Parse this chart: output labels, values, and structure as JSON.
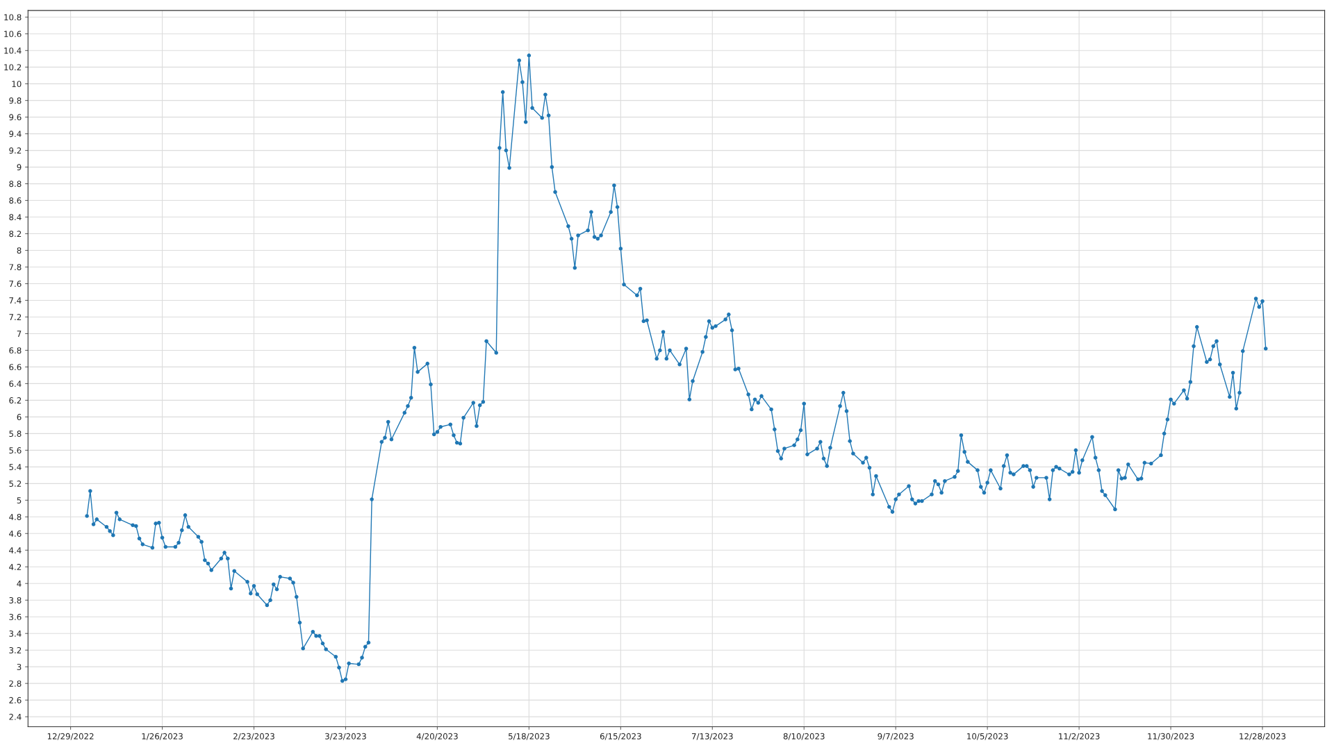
{
  "chart_data": {
    "type": "line",
    "marker": "circle",
    "line_style": "solid",
    "grid": true,
    "xlim": [
      "2022-12-16",
      "2024-01-16"
    ],
    "ylim": [
      2.28,
      10.88
    ],
    "xticks": [
      {
        "value": "2022-12-29",
        "label": "12/29/2022"
      },
      {
        "value": "2023-01-26",
        "label": "1/26/2023"
      },
      {
        "value": "2023-02-23",
        "label": "2/23/2023"
      },
      {
        "value": "2023-03-23",
        "label": "3/23/2023"
      },
      {
        "value": "2023-04-20",
        "label": "4/20/2023"
      },
      {
        "value": "2023-05-18",
        "label": "5/18/2023"
      },
      {
        "value": "2023-06-15",
        "label": "6/15/2023"
      },
      {
        "value": "2023-07-13",
        "label": "7/13/2023"
      },
      {
        "value": "2023-08-10",
        "label": "8/10/2023"
      },
      {
        "value": "2023-09-07",
        "label": "9/7/2023"
      },
      {
        "value": "2023-10-05",
        "label": "10/5/2023"
      },
      {
        "value": "2023-11-02",
        "label": "11/2/2023"
      },
      {
        "value": "2023-11-30",
        "label": "11/30/2023"
      },
      {
        "value": "2023-12-28",
        "label": "12/28/2023"
      }
    ],
    "yticks": [
      2.4,
      2.6,
      2.8,
      3,
      3.2,
      3.4,
      3.6,
      3.8,
      4,
      4.2,
      4.4,
      4.6,
      4.8,
      5,
      5.2,
      5.4,
      5.6,
      5.8,
      6,
      6.2,
      6.4,
      6.6,
      6.8,
      7,
      7.2,
      7.4,
      7.6,
      7.8,
      8,
      8.2,
      8.4,
      8.6,
      8.8,
      9,
      9.2,
      9.4,
      9.6,
      9.8,
      10,
      10.2,
      10.4,
      10.6,
      10.8
    ],
    "x": [
      "2023-01-03",
      "2023-01-04",
      "2023-01-05",
      "2023-01-06",
      "2023-01-09",
      "2023-01-10",
      "2023-01-11",
      "2023-01-12",
      "2023-01-13",
      "2023-01-17",
      "2023-01-18",
      "2023-01-19",
      "2023-01-20",
      "2023-01-23",
      "2023-01-24",
      "2023-01-25",
      "2023-01-26",
      "2023-01-27",
      "2023-01-30",
      "2023-01-31",
      "2023-02-01",
      "2023-02-02",
      "2023-02-03",
      "2023-02-06",
      "2023-02-07",
      "2023-02-08",
      "2023-02-09",
      "2023-02-10",
      "2023-02-13",
      "2023-02-14",
      "2023-02-15",
      "2023-02-16",
      "2023-02-17",
      "2023-02-21",
      "2023-02-22",
      "2023-02-23",
      "2023-02-24",
      "2023-02-27",
      "2023-02-28",
      "2023-03-01",
      "2023-03-02",
      "2023-03-03",
      "2023-03-06",
      "2023-03-07",
      "2023-03-08",
      "2023-03-09",
      "2023-03-10",
      "2023-03-13",
      "2023-03-14",
      "2023-03-15",
      "2023-03-16",
      "2023-03-17",
      "2023-03-20",
      "2023-03-21",
      "2023-03-22",
      "2023-03-23",
      "2023-03-24",
      "2023-03-27",
      "2023-03-28",
      "2023-03-29",
      "2023-03-30",
      "2023-03-31",
      "2023-04-03",
      "2023-04-04",
      "2023-04-05",
      "2023-04-06",
      "2023-04-10",
      "2023-04-11",
      "2023-04-12",
      "2023-04-13",
      "2023-04-14",
      "2023-04-17",
      "2023-04-18",
      "2023-04-19",
      "2023-04-20",
      "2023-04-21",
      "2023-04-24",
      "2023-04-25",
      "2023-04-26",
      "2023-04-27",
      "2023-04-28",
      "2023-05-01",
      "2023-05-02",
      "2023-05-03",
      "2023-05-04",
      "2023-05-05",
      "2023-05-08",
      "2023-05-09",
      "2023-05-10",
      "2023-05-11",
      "2023-05-12",
      "2023-05-15",
      "2023-05-16",
      "2023-05-17",
      "2023-05-18",
      "2023-05-19",
      "2023-05-22",
      "2023-05-23",
      "2023-05-24",
      "2023-05-25",
      "2023-05-26",
      "2023-05-30",
      "2023-05-31",
      "2023-06-01",
      "2023-06-02",
      "2023-06-05",
      "2023-06-06",
      "2023-06-07",
      "2023-06-08",
      "2023-06-09",
      "2023-06-12",
      "2023-06-13",
      "2023-06-14",
      "2023-06-15",
      "2023-06-16",
      "2023-06-20",
      "2023-06-21",
      "2023-06-22",
      "2023-06-23",
      "2023-06-26",
      "2023-06-27",
      "2023-06-28",
      "2023-06-29",
      "2023-06-30",
      "2023-07-03",
      "2023-07-05",
      "2023-07-06",
      "2023-07-07",
      "2023-07-10",
      "2023-07-11",
      "2023-07-12",
      "2023-07-13",
      "2023-07-14",
      "2023-07-17",
      "2023-07-18",
      "2023-07-19",
      "2023-07-20",
      "2023-07-21",
      "2023-07-24",
      "2023-07-25",
      "2023-07-26",
      "2023-07-27",
      "2023-07-28",
      "2023-07-31",
      "2023-08-01",
      "2023-08-02",
      "2023-08-03",
      "2023-08-04",
      "2023-08-07",
      "2023-08-08",
      "2023-08-09",
      "2023-08-10",
      "2023-08-11",
      "2023-08-14",
      "2023-08-15",
      "2023-08-16",
      "2023-08-17",
      "2023-08-18",
      "2023-08-21",
      "2023-08-22",
      "2023-08-23",
      "2023-08-24",
      "2023-08-25",
      "2023-08-28",
      "2023-08-29",
      "2023-08-30",
      "2023-08-31",
      "2023-09-01",
      "2023-09-05",
      "2023-09-06",
      "2023-09-07",
      "2023-09-08",
      "2023-09-11",
      "2023-09-12",
      "2023-09-13",
      "2023-09-14",
      "2023-09-15",
      "2023-09-18",
      "2023-09-19",
      "2023-09-20",
      "2023-09-21",
      "2023-09-22",
      "2023-09-25",
      "2023-09-26",
      "2023-09-27",
      "2023-09-28",
      "2023-09-29",
      "2023-10-02",
      "2023-10-03",
      "2023-10-04",
      "2023-10-05",
      "2023-10-06",
      "2023-10-09",
      "2023-10-10",
      "2023-10-11",
      "2023-10-12",
      "2023-10-13",
      "2023-10-16",
      "2023-10-17",
      "2023-10-18",
      "2023-10-19",
      "2023-10-20",
      "2023-10-23",
      "2023-10-24",
      "2023-10-25",
      "2023-10-26",
      "2023-10-27",
      "2023-10-30",
      "2023-10-31",
      "2023-11-01",
      "2023-11-02",
      "2023-11-03",
      "2023-11-06",
      "2023-11-07",
      "2023-11-08",
      "2023-11-09",
      "2023-11-10",
      "2023-11-13",
      "2023-11-14",
      "2023-11-15",
      "2023-11-16",
      "2023-11-17",
      "2023-11-20",
      "2023-11-21",
      "2023-11-22",
      "2023-11-24",
      "2023-11-27",
      "2023-11-28",
      "2023-11-29",
      "2023-11-30",
      "2023-12-01",
      "2023-12-04",
      "2023-12-05",
      "2023-12-06",
      "2023-12-07",
      "2023-12-08",
      "2023-12-11",
      "2023-12-12",
      "2023-12-13",
      "2023-12-14",
      "2023-12-15",
      "2023-12-18",
      "2023-12-19",
      "2023-12-20",
      "2023-12-21",
      "2023-12-22",
      "2023-12-26",
      "2023-12-27",
      "2023-12-28",
      "2023-12-29"
    ],
    "series": [
      {
        "color": "#1f77b4",
        "values": [
          4.81,
          5.11,
          4.71,
          4.77,
          4.68,
          4.63,
          4.58,
          4.85,
          4.77,
          4.7,
          4.69,
          4.54,
          4.47,
          4.43,
          4.72,
          4.73,
          4.55,
          4.44,
          4.44,
          4.49,
          4.64,
          4.82,
          4.68,
          4.56,
          4.5,
          4.28,
          4.24,
          4.16,
          4.3,
          4.37,
          4.3,
          3.94,
          4.15,
          4.02,
          3.88,
          3.97,
          3.87,
          3.74,
          3.8,
          3.99,
          3.93,
          4.08,
          4.06,
          4.01,
          3.84,
          3.53,
          3.22,
          3.42,
          3.37,
          3.37,
          3.28,
          3.21,
          3.12,
          2.99,
          2.83,
          2.85,
          3.04,
          3.03,
          3.11,
          3.24,
          3.29,
          5.01,
          5.7,
          5.75,
          5.94,
          5.73,
          6.05,
          6.13,
          6.23,
          6.83,
          6.54,
          6.64,
          6.39,
          5.79,
          5.82,
          5.88,
          5.91,
          5.78,
          5.69,
          5.68,
          5.99,
          6.17,
          5.89,
          6.14,
          6.18,
          6.91,
          6.77,
          9.23,
          9.9,
          9.2,
          8.99,
          10.28,
          10.02,
          9.54,
          10.34,
          9.71,
          9.59,
          9.87,
          9.62,
          9.0,
          8.7,
          8.29,
          8.14,
          7.79,
          8.18,
          8.24,
          8.46,
          8.16,
          8.14,
          8.18,
          8.46,
          8.78,
          8.52,
          8.02,
          7.59,
          7.46,
          7.54,
          7.15,
          7.16,
          6.7,
          6.8,
          7.02,
          6.7,
          6.8,
          6.63,
          6.82,
          6.21,
          6.43,
          6.78,
          6.96,
          7.15,
          7.07,
          7.09,
          7.17,
          7.23,
          7.04,
          6.57,
          6.58,
          6.27,
          6.09,
          6.21,
          6.17,
          6.25,
          6.09,
          5.85,
          5.59,
          5.5,
          5.62,
          5.66,
          5.73,
          5.84,
          6.16,
          5.55,
          5.62,
          5.7,
          5.5,
          5.41,
          5.63,
          6.13,
          6.29,
          6.07,
          5.71,
          5.56,
          5.45,
          5.51,
          5.39,
          5.07,
          5.29,
          4.92,
          4.86,
          5.01,
          5.07,
          5.17,
          5.01,
          4.96,
          4.99,
          4.99,
          5.07,
          5.23,
          5.19,
          5.09,
          5.23,
          5.28,
          5.35,
          5.78,
          5.58,
          5.46,
          5.36,
          5.16,
          5.09,
          5.21,
          5.36,
          5.14,
          5.41,
          5.54,
          5.33,
          5.31,
          5.41,
          5.41,
          5.36,
          5.16,
          5.27,
          5.27,
          5.01,
          5.36,
          5.4,
          5.38,
          5.31,
          5.34,
          5.6,
          5.33,
          5.48,
          5.76,
          5.51,
          5.36,
          5.11,
          5.06,
          4.89,
          5.36,
          5.26,
          5.27,
          5.43,
          5.25,
          5.26,
          5.45,
          5.44,
          5.54,
          5.8,
          5.97,
          6.21,
          6.16,
          6.32,
          6.22,
          6.42,
          6.85,
          7.08,
          6.66,
          6.69,
          6.85,
          6.91,
          6.63,
          6.24,
          6.53,
          6.1,
          6.29,
          6.79,
          7.42,
          7.32,
          7.39,
          6.82
        ]
      }
    ]
  }
}
